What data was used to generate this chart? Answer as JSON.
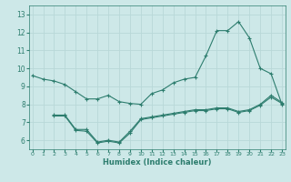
{
  "title": "",
  "xlabel": "Humidex (Indice chaleur)",
  "ylabel": "",
  "bg_color": "#cde8e8",
  "grid_color": "#b8d8d8",
  "line_color": "#2d7d6e",
  "x_ticks": [
    0,
    1,
    2,
    3,
    4,
    5,
    6,
    7,
    8,
    9,
    10,
    11,
    12,
    13,
    14,
    15,
    16,
    17,
    18,
    19,
    20,
    21,
    22,
    23
  ],
  "y_ticks": [
    6,
    7,
    8,
    9,
    10,
    11,
    12,
    13
  ],
  "ylim": [
    5.5,
    13.5
  ],
  "xlim": [
    -0.3,
    23.3
  ],
  "series": [
    [
      9.6,
      9.4,
      9.3,
      9.1,
      8.7,
      8.3,
      8.3,
      8.5,
      8.15,
      8.05,
      8.0,
      8.6,
      8.8,
      9.2,
      9.4,
      9.5,
      10.7,
      12.1,
      12.1,
      12.6,
      11.7,
      10.0,
      9.7,
      8.0
    ],
    [
      null,
      null,
      7.4,
      7.4,
      6.6,
      6.6,
      5.9,
      6.0,
      5.9,
      6.5,
      7.2,
      7.3,
      7.4,
      7.5,
      7.6,
      7.7,
      7.7,
      7.8,
      7.8,
      7.6,
      7.7,
      8.0,
      8.5,
      8.1
    ],
    [
      null,
      null,
      7.35,
      7.35,
      6.55,
      6.5,
      5.85,
      5.95,
      5.85,
      6.4,
      7.15,
      7.25,
      7.35,
      7.45,
      7.55,
      7.65,
      7.65,
      7.75,
      7.75,
      7.55,
      7.65,
      7.95,
      8.4,
      8.05
    ]
  ]
}
